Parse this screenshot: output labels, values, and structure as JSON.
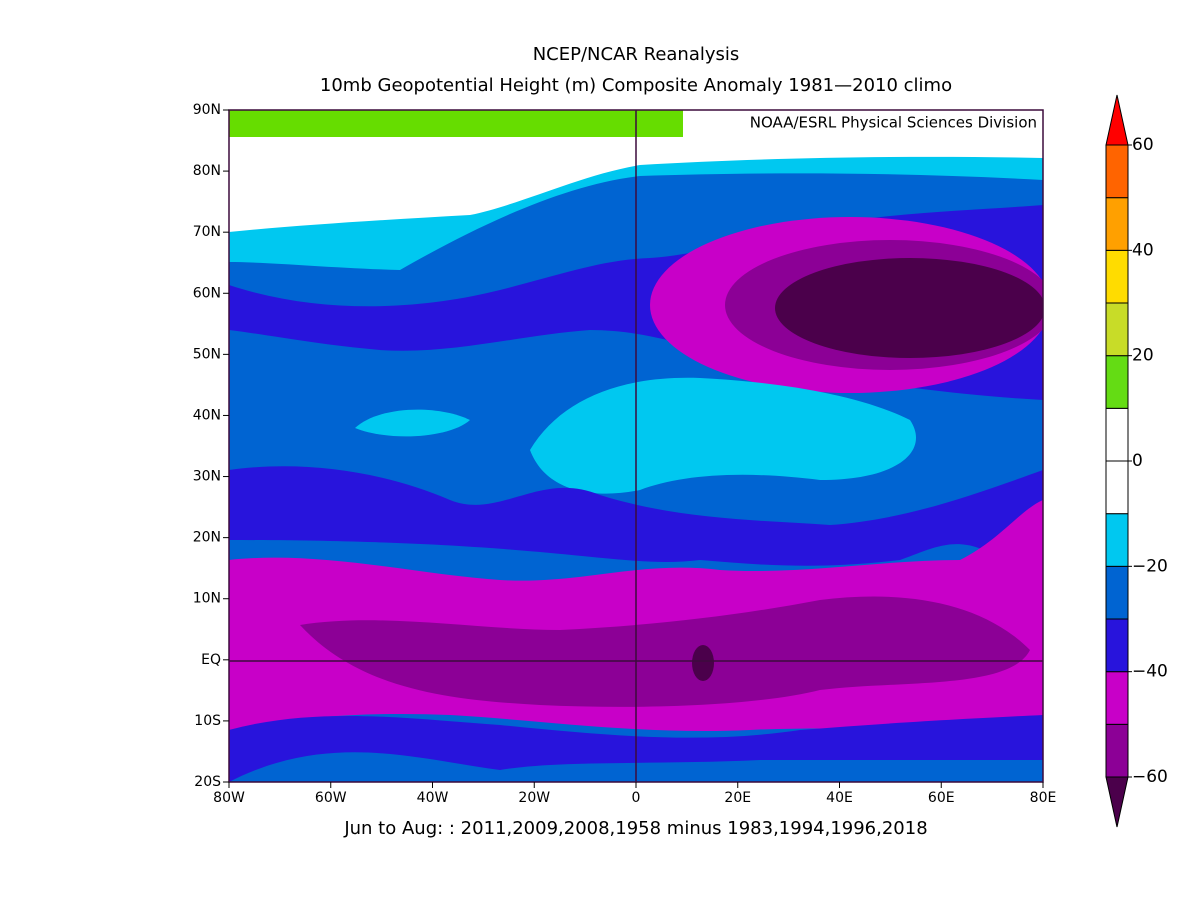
{
  "header": {
    "title": "NCEP/NCAR Reanalysis",
    "subtitle": "10mb Geopotential Height (m) Composite Anomaly 1981—2010 climo"
  },
  "map": {
    "attribution": "NOAA/ESRL Physical Sciences Division",
    "footer": "Jun to Aug: : 2011,2009,2008,1958 minus 1983,1994,1996,2018",
    "xlim": [
      -80,
      80
    ],
    "xticks": [
      {
        "value": -80,
        "label": "80W"
      },
      {
        "value": -60,
        "label": "60W"
      },
      {
        "value": -40,
        "label": "40W"
      },
      {
        "value": -20,
        "label": "20W"
      },
      0,
      {
        "value": 20,
        "label": "20E"
      },
      {
        "value": 40,
        "label": "40E"
      },
      {
        "value": 60,
        "label": "60E"
      },
      {
        "value": 80,
        "label": "80E"
      }
    ],
    "ylim": [
      -20,
      90
    ],
    "yticks": [
      {
        "value": 90,
        "label": "90N"
      },
      {
        "value": 80,
        "label": "80N"
      },
      {
        "value": 70,
        "label": "70N"
      },
      {
        "value": 60,
        "label": "60N"
      },
      {
        "value": 50,
        "label": "50N"
      },
      {
        "value": 40,
        "label": "40N"
      },
      {
        "value": 30,
        "label": "30N"
      },
      {
        "value": 20,
        "label": "20N"
      },
      {
        "value": 10,
        "label": "10N"
      },
      {
        "value": 0,
        "label": "EQ"
      },
      {
        "value": -10,
        "label": "10S"
      },
      {
        "value": -20,
        "label": "20S"
      }
    ]
  },
  "colorbar": {
    "lim": [
      -60,
      60
    ],
    "ticks": [
      {
        "value": -60,
        "label": "−60"
      },
      {
        "value": -40,
        "label": "−40"
      },
      {
        "value": -20,
        "label": "−20"
      },
      0,
      20,
      40,
      60
    ],
    "colors": [
      "#4b004b",
      "#8c0096",
      "#c800c8",
      "#2814dc",
      "#0064d2",
      "#00c8f0",
      "#ffffff",
      "#ffffff",
      "#64dc14",
      "#c8dc28",
      "#ffdc00",
      "#ffa000",
      "#ff6400",
      "#ff0000"
    ]
  }
}
